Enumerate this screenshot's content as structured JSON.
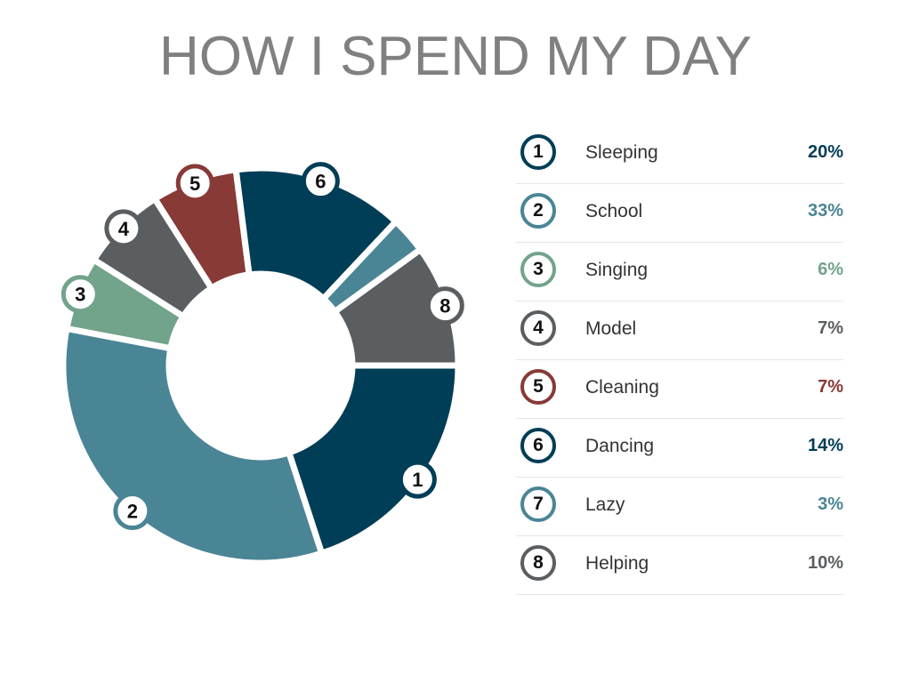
{
  "chart_data": {
    "type": "pie",
    "variant": "donut",
    "title": "HOW I SPEND MY DAY",
    "start_angle": "3 o'clock, clockwise",
    "slices": [
      {
        "id": "1",
        "label": "Sleeping",
        "value": 20,
        "display": "20%",
        "color": "#003d56",
        "badge": true
      },
      {
        "id": "2",
        "label": "School",
        "value": 33,
        "display": "33%",
        "color": "#4a8596",
        "badge": true
      },
      {
        "id": "3",
        "label": "Singing",
        "value": 6,
        "display": "6%",
        "color": "#72a38b",
        "badge": true
      },
      {
        "id": "4",
        "label": "Model",
        "value": 7,
        "display": "7%",
        "color": "#5a5e60",
        "badge": true
      },
      {
        "id": "5",
        "label": "Cleaning",
        "value": 7,
        "display": "7%",
        "color": "#873a36",
        "badge": true
      },
      {
        "id": "6",
        "label": "Dancing",
        "value": 14,
        "display": "14%",
        "color": "#003d56",
        "badge": true
      },
      {
        "id": "7",
        "label": "Lazy",
        "value": 3,
        "display": "3%",
        "color": "#4a8596",
        "badge": false
      },
      {
        "id": "8",
        "label": "Helping",
        "value": 10,
        "display": "10%",
        "color": "#5a5e60",
        "badge": true
      }
    ],
    "legend": "right"
  }
}
